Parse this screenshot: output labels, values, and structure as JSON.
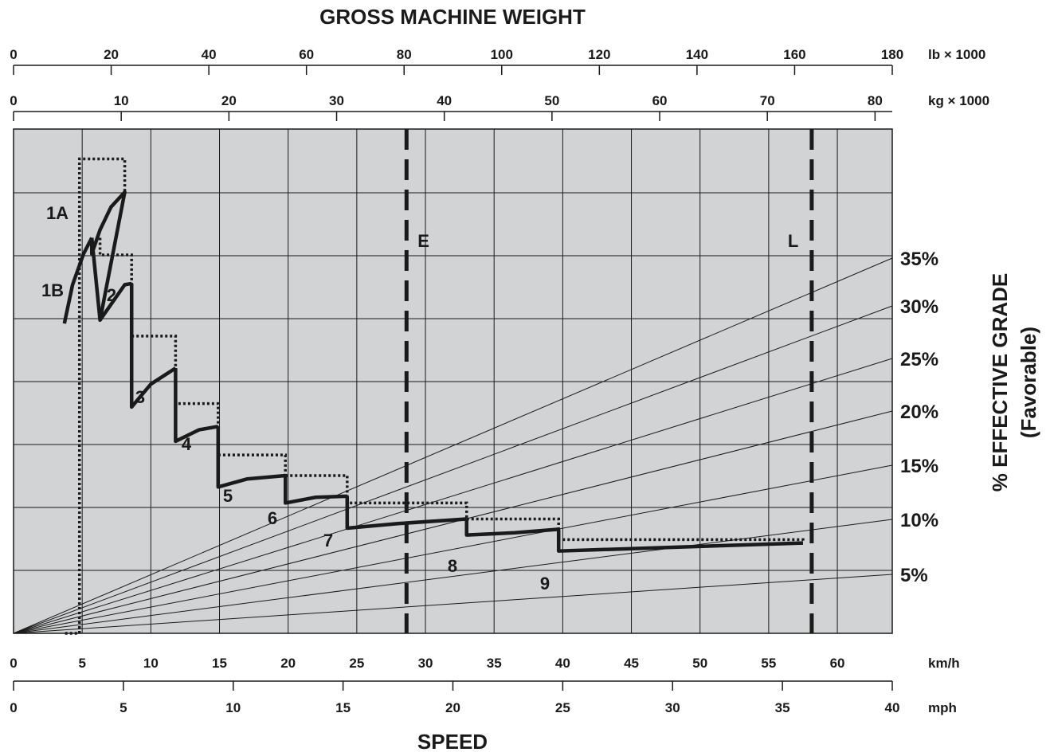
{
  "chart_data": {
    "type": "line",
    "title": "GROSS MACHINE WEIGHT",
    "xlabel": "SPEED",
    "ylabel": "% EFFECTIVE GRADE",
    "ylabel_sub": "(Favorable)",
    "weight_axes": [
      {
        "unit": "lb × 1000",
        "range": [
          0,
          180
        ],
        "ticks": [
          "0",
          "20",
          "40",
          "60",
          "80",
          "100",
          "120",
          "140",
          "160",
          "180"
        ]
      },
      {
        "unit": "kg × 1000",
        "range": [
          0,
          81.6
        ],
        "ticks": [
          "0",
          "10",
          "20",
          "30",
          "40",
          "50",
          "60",
          "70",
          "80"
        ]
      }
    ],
    "speed_axes": [
      {
        "unit": "km/h",
        "range": [
          0,
          64
        ],
        "ticks": [
          "0",
          "5",
          "10",
          "15",
          "20",
          "25",
          "30",
          "35",
          "40",
          "45",
          "50",
          "55",
          "60"
        ]
      },
      {
        "unit": "mph",
        "range": [
          0,
          40
        ],
        "ticks": [
          "0",
          "5",
          "10",
          "15",
          "20",
          "25",
          "30",
          "35",
          "40"
        ]
      }
    ],
    "grade_lines": [
      {
        "label": "5%",
        "value": 5
      },
      {
        "label": "10%",
        "value": 10
      },
      {
        "label": "15%",
        "value": 15
      },
      {
        "label": "20%",
        "value": 20
      },
      {
        "label": "25%",
        "value": 25
      },
      {
        "label": "30%",
        "value": 30
      },
      {
        "label": "35%",
        "value": 35
      }
    ],
    "weight_markers": [
      {
        "label": "E",
        "lb": 80.5
      },
      {
        "label": "L",
        "lb": 163.5
      }
    ],
    "gears": [
      {
        "label": "1A",
        "solid": [
          [
            5.7,
            33.2
          ],
          [
            6.3,
            35.3
          ],
          [
            7.1,
            37.3
          ],
          [
            8.1,
            38.6
          ]
        ],
        "dotted_top": 41.5,
        "dotted_range": [
          4.8,
          8.1
        ]
      },
      {
        "label": "1B",
        "solid": [
          [
            3.7,
            27.1
          ],
          [
            4.3,
            30.5
          ],
          [
            5.1,
            33.2
          ],
          [
            5.7,
            34.6
          ]
        ]
      },
      {
        "label": "2",
        "solid": [
          [
            6.3,
            27.4
          ],
          [
            8.1,
            30.5
          ],
          [
            8.6,
            30.6
          ]
        ],
        "dotted_top": 33.1,
        "dotted_range": [
          6.3,
          8.6
        ]
      },
      {
        "label": "3",
        "solid": [
          [
            8.6,
            19.8
          ],
          [
            10.0,
            21.8
          ],
          [
            11.8,
            23.2
          ]
        ],
        "dotted_top": 26.0,
        "dotted_range": [
          8.6,
          11.8
        ]
      },
      {
        "label": "4",
        "solid": [
          [
            11.8,
            16.8
          ],
          [
            13.5,
            17.8
          ],
          [
            14.9,
            18.1
          ]
        ],
        "dotted_top": 20.1,
        "dotted_range": [
          11.8,
          14.9
        ]
      },
      {
        "label": "5",
        "solid": [
          [
            14.9,
            12.8
          ],
          [
            17.0,
            13.5
          ],
          [
            19.8,
            13.8
          ]
        ],
        "dotted_top": 15.6,
        "dotted_range": [
          14.9,
          19.8
        ]
      },
      {
        "label": "6",
        "solid": [
          [
            19.8,
            11.4
          ],
          [
            22.0,
            11.9
          ],
          [
            24.3,
            12.0
          ]
        ],
        "dotted_top": 13.8,
        "dotted_range": [
          19.8,
          24.3
        ]
      },
      {
        "label": "7",
        "solid": [
          [
            24.3,
            9.2
          ],
          [
            28.0,
            9.6
          ],
          [
            33.0,
            10.0
          ]
        ],
        "dotted_top": 11.4,
        "dotted_range": [
          24.3,
          33.0
        ]
      },
      {
        "label": "8",
        "solid": [
          [
            33.0,
            8.6
          ],
          [
            36.5,
            8.8
          ],
          [
            39.7,
            9.1
          ]
        ],
        "dotted_top": 10.0,
        "dotted_range": [
          33.0,
          39.7
        ]
      },
      {
        "label": "9",
        "solid": [
          [
            39.7,
            7.2
          ],
          [
            57.5,
            7.9
          ]
        ],
        "dotted_top": 8.2,
        "dotted_range": [
          39.7,
          57.5
        ]
      }
    ]
  }
}
